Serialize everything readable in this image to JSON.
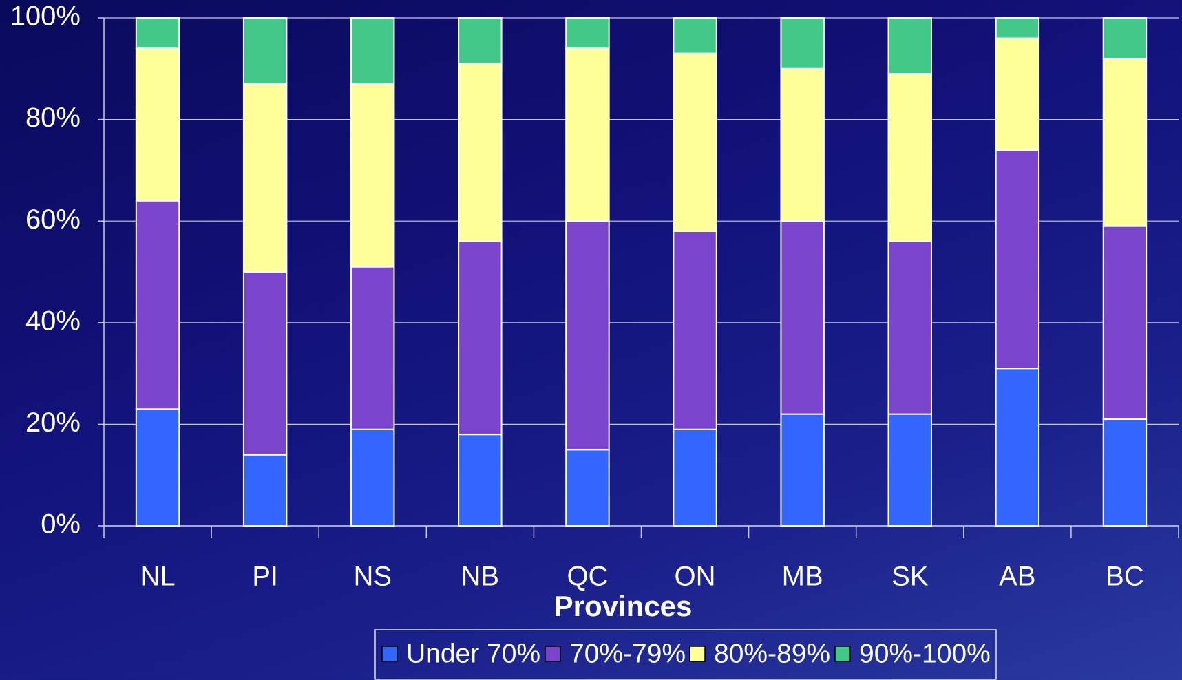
{
  "chart_data": {
    "type": "stacked_bar",
    "xlabel": "Provinces",
    "categories": [
      "NL",
      "PI",
      "NS",
      "NB",
      "QC",
      "ON",
      "MB",
      "SK",
      "AB",
      "BC"
    ],
    "series": [
      {
        "name": "Under 70%",
        "color": "#3366ff",
        "values": [
          23,
          14,
          19,
          18,
          15,
          19,
          22,
          22,
          31,
          21
        ]
      },
      {
        "name": "70%-79%",
        "color": "#7b44cc",
        "values": [
          41,
          36,
          32,
          38,
          45,
          39,
          38,
          34,
          43,
          38
        ]
      },
      {
        "name": "80%-89%",
        "color": "#ffff99",
        "values": [
          30,
          37,
          36,
          35,
          34,
          35,
          30,
          33,
          22,
          33
        ]
      },
      {
        "name": "90%-100%",
        "color": "#44c88a",
        "values": [
          6,
          13,
          13,
          9,
          6,
          7,
          10,
          11,
          4,
          8
        ]
      }
    ],
    "ylim": [
      0,
      100
    ],
    "yticks": [
      {
        "value": 0,
        "label": "0%"
      },
      {
        "value": 20,
        "label": "20%"
      },
      {
        "value": 40,
        "label": "40%"
      },
      {
        "value": 60,
        "label": "60%"
      },
      {
        "value": 80,
        "label": "80%"
      },
      {
        "value": 100,
        "label": "100%"
      }
    ],
    "grid": true,
    "legend": "bottom"
  }
}
